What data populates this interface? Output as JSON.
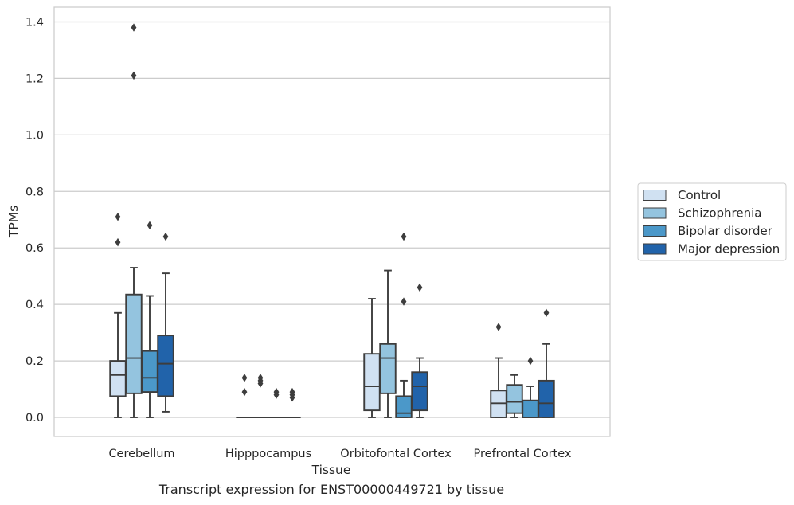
{
  "caption": "Transcript expression for ENST00000449721 by tissue",
  "chart_data": {
    "type": "box",
    "xlabel": "Tissue",
    "ylabel": "TPMs",
    "ylim": [
      -0.065,
      1.45
    ],
    "yticks": [
      0.0,
      0.2,
      0.4,
      0.6,
      0.8,
      1.0,
      1.2,
      1.4
    ],
    "ytick_labels": [
      "0.0",
      "0.2",
      "0.4",
      "0.6",
      "0.8",
      "1.0",
      "1.2",
      "1.4"
    ],
    "grid": "horizontal",
    "legend_position": "right",
    "categories": [
      "Cerebellum",
      "Hipppocampus",
      "Orbitofontal Cortex",
      "Prefrontal Cortex"
    ],
    "series": [
      {
        "name": "Control",
        "color": "#d0e1f2",
        "boxes": [
          {
            "whislo": 0.0,
            "q1": 0.075,
            "med": 0.15,
            "q3": 0.2,
            "whishi": 0.37,
            "fliers": [
              0.71,
              0.62
            ]
          },
          {
            "whislo": 0.0,
            "q1": 0.0,
            "med": 0.0,
            "q3": 0.0,
            "whishi": 0.0,
            "fliers": [
              0.14,
              0.09
            ]
          },
          {
            "whislo": 0.0,
            "q1": 0.025,
            "med": 0.11,
            "q3": 0.225,
            "whishi": 0.42,
            "fliers": []
          },
          {
            "whislo": 0.0,
            "q1": 0.0,
            "med": 0.05,
            "q3": 0.095,
            "whishi": 0.21,
            "fliers": [
              0.32
            ]
          }
        ]
      },
      {
        "name": "Schizophrenia",
        "color": "#94c4df",
        "boxes": [
          {
            "whislo": 0.0,
            "q1": 0.085,
            "med": 0.21,
            "q3": 0.435,
            "whishi": 0.53,
            "fliers": [
              1.38,
              1.21
            ]
          },
          {
            "whislo": 0.0,
            "q1": 0.0,
            "med": 0.0,
            "q3": 0.0,
            "whishi": 0.0,
            "fliers": [
              0.14,
              0.13,
              0.12
            ]
          },
          {
            "whislo": 0.0,
            "q1": 0.085,
            "med": 0.21,
            "q3": 0.26,
            "whishi": 0.52,
            "fliers": []
          },
          {
            "whislo": 0.0,
            "q1": 0.015,
            "med": 0.055,
            "q3": 0.115,
            "whishi": 0.15,
            "fliers": []
          }
        ]
      },
      {
        "name": "Bipolar disorder",
        "color": "#4b98c9",
        "boxes": [
          {
            "whislo": 0.0,
            "q1": 0.09,
            "med": 0.14,
            "q3": 0.235,
            "whishi": 0.43,
            "fliers": [
              0.68
            ]
          },
          {
            "whislo": 0.0,
            "q1": 0.0,
            "med": 0.0,
            "q3": 0.0,
            "whishi": 0.0,
            "fliers": [
              0.09,
              0.08
            ]
          },
          {
            "whislo": 0.0,
            "q1": 0.0,
            "med": 0.015,
            "q3": 0.075,
            "whishi": 0.13,
            "fliers": [
              0.64,
              0.41
            ]
          },
          {
            "whislo": 0.0,
            "q1": 0.0,
            "med": 0.0,
            "q3": 0.06,
            "whishi": 0.11,
            "fliers": [
              0.2
            ]
          }
        ]
      },
      {
        "name": "Major depression",
        "color": "#2163aa",
        "boxes": [
          {
            "whislo": 0.02,
            "q1": 0.075,
            "med": 0.19,
            "q3": 0.29,
            "whishi": 0.51,
            "fliers": [
              0.64
            ]
          },
          {
            "whislo": 0.0,
            "q1": 0.0,
            "med": 0.0,
            "q3": 0.0,
            "whishi": 0.0,
            "fliers": [
              0.09,
              0.08,
              0.07
            ]
          },
          {
            "whislo": 0.0,
            "q1": 0.025,
            "med": 0.11,
            "q3": 0.16,
            "whishi": 0.21,
            "fliers": [
              0.46
            ]
          },
          {
            "whislo": 0.0,
            "q1": 0.0,
            "med": 0.05,
            "q3": 0.13,
            "whishi": 0.26,
            "fliers": [
              0.37
            ]
          }
        ]
      }
    ]
  }
}
